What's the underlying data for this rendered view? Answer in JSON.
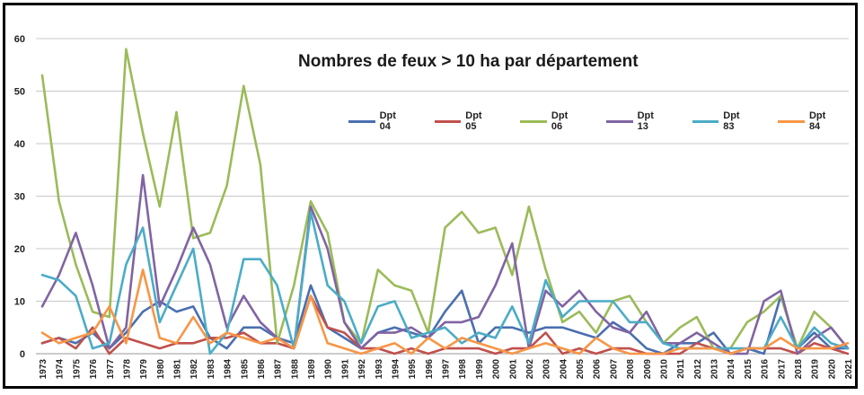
{
  "chart_data": {
    "type": "line",
    "title": "Nombres de feux > 10 ha par département",
    "xlabel": "",
    "ylabel": "",
    "ylim": [
      0,
      60
    ],
    "yticks": [
      0,
      10,
      20,
      30,
      40,
      50,
      60
    ],
    "grid": true,
    "legend_position": "top-center",
    "categories": [
      "1973",
      "1974",
      "1975",
      "1976",
      "1977",
      "1978",
      "1979",
      "1980",
      "1981",
      "1982",
      "1983",
      "1984",
      "1985",
      "1986",
      "1987",
      "1988",
      "1989",
      "1990",
      "1991",
      "1992",
      "1993",
      "1994",
      "1995",
      "1996",
      "1997",
      "1998",
      "1999",
      "2000",
      "2001",
      "2002",
      "2003",
      "2004",
      "2005",
      "2006",
      "2007",
      "2008",
      "2009",
      "2010",
      "2011",
      "2012",
      "2013",
      "2014",
      "2015",
      "2016",
      "2017",
      "2018",
      "2019",
      "2020",
      "2021"
    ],
    "series": [
      {
        "name": "Dpt 04",
        "color": "#4a6fb0",
        "values": [
          2,
          3,
          2,
          4,
          1,
          4,
          8,
          10,
          8,
          9,
          3,
          1,
          5,
          5,
          3,
          2,
          13,
          5,
          3,
          1,
          4,
          5,
          4,
          3,
          8,
          12,
          2,
          5,
          5,
          4,
          5,
          5,
          4,
          3,
          6,
          4,
          1,
          0,
          2,
          2,
          4,
          0,
          1,
          0,
          11,
          1,
          4,
          1,
          1
        ]
      },
      {
        "name": "Dpt 05",
        "color": "#c0504d",
        "values": [
          2,
          3,
          1,
          5,
          0,
          3,
          2,
          1,
          2,
          2,
          3,
          3,
          4,
          2,
          2,
          1,
          11,
          5,
          4,
          1,
          1,
          0,
          1,
          0,
          1,
          1,
          1,
          0,
          1,
          1,
          4,
          0,
          1,
          0,
          1,
          1,
          0,
          0,
          0,
          2,
          1,
          0,
          1,
          1,
          1,
          0,
          2,
          1,
          0
        ]
      },
      {
        "name": "Dpt 06",
        "color": "#9bbb59",
        "values": [
          53,
          29,
          17,
          8,
          7,
          58,
          42,
          28,
          46,
          22,
          23,
          32,
          51,
          36,
          2,
          13,
          29,
          23,
          6,
          2,
          16,
          13,
          12,
          4,
          24,
          27,
          23,
          24,
          15,
          28,
          16,
          6,
          8,
          4,
          10,
          11,
          6,
          2,
          5,
          7,
          1,
          1,
          6,
          8,
          11,
          1,
          8,
          5,
          1
        ]
      },
      {
        "name": "Dpt 13",
        "color": "#8064a2",
        "values": [
          9,
          15,
          23,
          13,
          1,
          5,
          34,
          9,
          16,
          24,
          17,
          5,
          11,
          6,
          3,
          1,
          28,
          20,
          6,
          1,
          4,
          4,
          5,
          3,
          6,
          6,
          7,
          13,
          21,
          1,
          12,
          9,
          12,
          8,
          5,
          4,
          8,
          2,
          2,
          4,
          2,
          0,
          0,
          10,
          12,
          0,
          3,
          5,
          1
        ]
      },
      {
        "name": "Dpt 83",
        "color": "#4bacc6",
        "values": [
          15,
          14,
          11,
          1,
          2,
          17,
          24,
          6,
          13,
          20,
          0,
          4,
          18,
          18,
          13,
          1,
          27,
          13,
          10,
          2,
          9,
          10,
          3,
          4,
          5,
          2,
          4,
          3,
          9,
          2,
          14,
          7,
          10,
          10,
          10,
          6,
          6,
          2,
          1,
          1,
          1,
          1,
          1,
          1,
          7,
          1,
          5,
          2,
          1
        ]
      },
      {
        "name": "Dpt 84",
        "color": "#f79646",
        "values": [
          4,
          2,
          3,
          4,
          9,
          2,
          16,
          3,
          2,
          7,
          2,
          4,
          3,
          2,
          3,
          1,
          11,
          2,
          1,
          0,
          1,
          2,
          0,
          3,
          1,
          3,
          2,
          1,
          0,
          1,
          2,
          1,
          0,
          3,
          1,
          0,
          0,
          0,
          1,
          1,
          1,
          0,
          1,
          1,
          3,
          1,
          1,
          1,
          2
        ]
      }
    ]
  }
}
